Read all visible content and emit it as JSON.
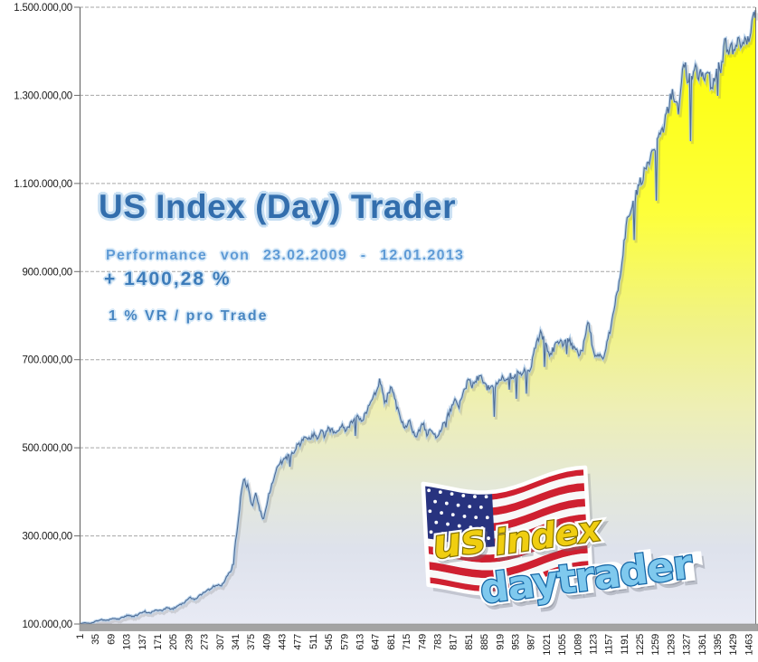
{
  "header": {
    "title": "US Index (Day) Trader",
    "subtitle": "Performance von 23.02.2009 - 12.01.2013",
    "performance": "+ 1400,28 %",
    "risk_note": "1 % VR / pro Trade"
  },
  "logo": {
    "word1": "us",
    "word2": "index",
    "word3": "daytrader",
    "flag_icon": "us-flag-icon",
    "colors": {
      "yellow": "#f0ce10",
      "yellow_outline": "#837000",
      "blue": "#7fc9ee",
      "blue_outline": "#1767a6",
      "flag_red": "#cf2030",
      "flag_white": "#f8f8f8",
      "flag_canton": "#28337f"
    }
  },
  "colors": {
    "title_blue": "#336ead",
    "subtitle_blue": "#5f9bd6",
    "performance_blue": "#3d7cba",
    "risk_blue": "#4886c2",
    "text_outline": "#c6def2",
    "line_core": "#4f6d96",
    "line_halo": "#aecbe8",
    "line_shadow": "rgba(110,110,110,0.22)",
    "area_top": "#fdff02",
    "area_mid": "#f1f383",
    "area_bottom": "#e9ebf5",
    "grid": "#a6a6a6",
    "axis": "#6e6e6e",
    "right_border": "#777777",
    "axis_bar": "#a3a3a3",
    "axis_bar_edge": "#8d8d8d",
    "label_color": "#1a1a1a"
  },
  "chart_data": {
    "type": "area",
    "title": "US Index (Day) Trader",
    "subtitle": "Performance von 23.02.2009 - 12.01.2013",
    "annotations": [
      "+ 1400,28 %",
      "1 % VR / pro Trade"
    ],
    "xlabel": "",
    "ylabel": "",
    "xlim": [
      1,
      1478
    ],
    "ylim": [
      100000,
      1500000
    ],
    "grid": "horizontal",
    "legend": "none",
    "y_tick_values": [
      1500000,
      1300000,
      1100000,
      900000,
      700000,
      500000,
      300000,
      100000
    ],
    "y_tick_labels": [
      "1.500.000,00",
      "1.300.000,00",
      "1.100.000,00",
      "900.000,00",
      "700.000,00",
      "500.000,00",
      "300.000,00",
      "100.000,00"
    ],
    "x_tick_labels": [
      "1",
      "35",
      "69",
      "103",
      "137",
      "171",
      "205",
      "239",
      "273",
      "307",
      "341",
      "375",
      "409",
      "443",
      "477",
      "511",
      "545",
      "579",
      "613",
      "647",
      "681",
      "715",
      "749",
      "783",
      "817",
      "851",
      "885",
      "919",
      "953",
      "987",
      "1021",
      "1055",
      "1089",
      "1123",
      "1157",
      "1191",
      "1225",
      "1259",
      "1293",
      "1327",
      "1361",
      "1395",
      "1429",
      "1463"
    ],
    "x_tick_step": 34,
    "noise_seed": 7,
    "series": [
      {
        "name": "equity-curve",
        "points": [
          [
            1,
            100000
          ],
          [
            12,
            103000
          ],
          [
            24,
            101000
          ],
          [
            36,
            106000
          ],
          [
            48,
            110000
          ],
          [
            60,
            108000
          ],
          [
            72,
            113000
          ],
          [
            84,
            111000
          ],
          [
            96,
            116000
          ],
          [
            108,
            120000
          ],
          [
            120,
            117000
          ],
          [
            132,
            123000
          ],
          [
            144,
            128000
          ],
          [
            156,
            125000
          ],
          [
            168,
            132000
          ],
          [
            180,
            130000
          ],
          [
            192,
            137000
          ],
          [
            204,
            134000
          ],
          [
            216,
            142000
          ],
          [
            228,
            148000
          ],
          [
            240,
            160000
          ],
          [
            252,
            156000
          ],
          [
            264,
            165000
          ],
          [
            276,
            172000
          ],
          [
            288,
            180000
          ],
          [
            300,
            190000
          ],
          [
            310,
            185000
          ],
          [
            321,
            205000
          ],
          [
            331,
            218000
          ],
          [
            338,
            240000
          ],
          [
            341,
            280000
          ],
          [
            345,
            310000
          ],
          [
            349,
            345000
          ],
          [
            353,
            385000
          ],
          [
            357,
            420000
          ],
          [
            361,
            430000
          ],
          [
            365,
            405000
          ],
          [
            369,
            418000
          ],
          [
            374,
            380000
          ],
          [
            379,
            368000
          ],
          [
            385,
            400000
          ],
          [
            390,
            380000
          ],
          [
            396,
            355000
          ],
          [
            402,
            338000
          ],
          [
            408,
            360000
          ],
          [
            414,
            390000
          ],
          [
            420,
            415000
          ],
          [
            427,
            435000
          ],
          [
            434,
            455000
          ],
          [
            441,
            465000
          ],
          [
            448,
            472000
          ],
          [
            456,
            480000
          ],
          [
            464,
            483000
          ],
          [
            472,
            498000
          ],
          [
            480,
            508000
          ],
          [
            489,
            515000
          ],
          [
            497,
            528000
          ],
          [
            505,
            518000
          ],
          [
            513,
            532000
          ],
          [
            521,
            524000
          ],
          [
            529,
            538000
          ],
          [
            537,
            528000
          ],
          [
            545,
            545000
          ],
          [
            553,
            538000
          ],
          [
            560,
            535000
          ],
          [
            572,
            550000
          ],
          [
            584,
            540000
          ],
          [
            596,
            560000
          ],
          [
            608,
            575000
          ],
          [
            618,
            560000
          ],
          [
            630,
            585000
          ],
          [
            640,
            605000
          ],
          [
            648,
            625000
          ],
          [
            654,
            645000
          ],
          [
            658,
            656000
          ],
          [
            664,
            620000
          ],
          [
            670,
            600000
          ],
          [
            676,
            625000
          ],
          [
            682,
            635000
          ],
          [
            690,
            610000
          ],
          [
            698,
            580000
          ],
          [
            706,
            560000
          ],
          [
            714,
            545000
          ],
          [
            722,
            560000
          ],
          [
            728,
            540000
          ],
          [
            736,
            525000
          ],
          [
            744,
            540000
          ],
          [
            752,
            555000
          ],
          [
            760,
            530000
          ],
          [
            768,
            545000
          ],
          [
            776,
            530000
          ],
          [
            782,
            520000
          ],
          [
            790,
            540000
          ],
          [
            798,
            560000
          ],
          [
            806,
            575000
          ],
          [
            814,
            590000
          ],
          [
            822,
            608000
          ],
          [
            830,
            590000
          ],
          [
            838,
            620000
          ],
          [
            846,
            640000
          ],
          [
            852,
            655000
          ],
          [
            860,
            640000
          ],
          [
            868,
            655000
          ],
          [
            876,
            665000
          ],
          [
            884,
            650000
          ],
          [
            892,
            632000
          ],
          [
            900,
            645000
          ],
          [
            908,
            635000
          ],
          [
            916,
            650000
          ],
          [
            924,
            662000
          ],
          [
            932,
            652000
          ],
          [
            940,
            668000
          ],
          [
            948,
            658000
          ],
          [
            956,
            672000
          ],
          [
            964,
            662000
          ],
          [
            972,
            680000
          ],
          [
            980,
            670000
          ],
          [
            988,
            678000
          ],
          [
            995,
            720000
          ],
          [
            1002,
            745000
          ],
          [
            1008,
            759000
          ],
          [
            1015,
            745000
          ],
          [
            1022,
            725000
          ],
          [
            1030,
            710000
          ],
          [
            1040,
            730000
          ],
          [
            1050,
            745000
          ],
          [
            1058,
            735000
          ],
          [
            1066,
            750000
          ],
          [
            1075,
            735000
          ],
          [
            1085,
            722000
          ],
          [
            1092,
            710000
          ],
          [
            1099,
            717000
          ],
          [
            1106,
            750000
          ],
          [
            1113,
            786000
          ],
          [
            1120,
            745000
          ],
          [
            1129,
            703000
          ],
          [
            1137,
            712000
          ],
          [
            1145,
            705000
          ],
          [
            1152,
            725000
          ],
          [
            1160,
            765000
          ],
          [
            1168,
            805000
          ],
          [
            1176,
            850000
          ],
          [
            1184,
            890000
          ],
          [
            1190,
            950000
          ],
          [
            1196,
            1005000
          ],
          [
            1204,
            1035000
          ],
          [
            1212,
            1055000
          ],
          [
            1220,
            1085000
          ],
          [
            1228,
            1105000
          ],
          [
            1236,
            1125000
          ],
          [
            1244,
            1140000
          ],
          [
            1252,
            1165000
          ],
          [
            1260,
            1185000
          ],
          [
            1268,
            1205000
          ],
          [
            1276,
            1225000
          ],
          [
            1283,
            1250000
          ],
          [
            1290,
            1280000
          ],
          [
            1297,
            1315000
          ],
          [
            1304,
            1285000
          ],
          [
            1311,
            1267000
          ],
          [
            1317,
            1340000
          ],
          [
            1324,
            1376000
          ],
          [
            1330,
            1330000
          ],
          [
            1336,
            1360000
          ],
          [
            1342,
            1341000
          ],
          [
            1348,
            1370000
          ],
          [
            1354,
            1330000
          ],
          [
            1360,
            1356000
          ],
          [
            1366,
            1331000
          ],
          [
            1372,
            1352000
          ],
          [
            1378,
            1341000
          ],
          [
            1384,
            1310000
          ],
          [
            1390,
            1340000
          ],
          [
            1396,
            1380000
          ],
          [
            1402,
            1360000
          ],
          [
            1408,
            1400000
          ],
          [
            1413,
            1424000
          ],
          [
            1419,
            1400000
          ],
          [
            1425,
            1418000
          ],
          [
            1431,
            1391000
          ],
          [
            1437,
            1410000
          ],
          [
            1442,
            1432000
          ],
          [
            1448,
            1405000
          ],
          [
            1454,
            1435000
          ],
          [
            1460,
            1415000
          ],
          [
            1466,
            1445000
          ],
          [
            1472,
            1470000
          ],
          [
            1478,
            1490000
          ]
        ]
      }
    ]
  }
}
